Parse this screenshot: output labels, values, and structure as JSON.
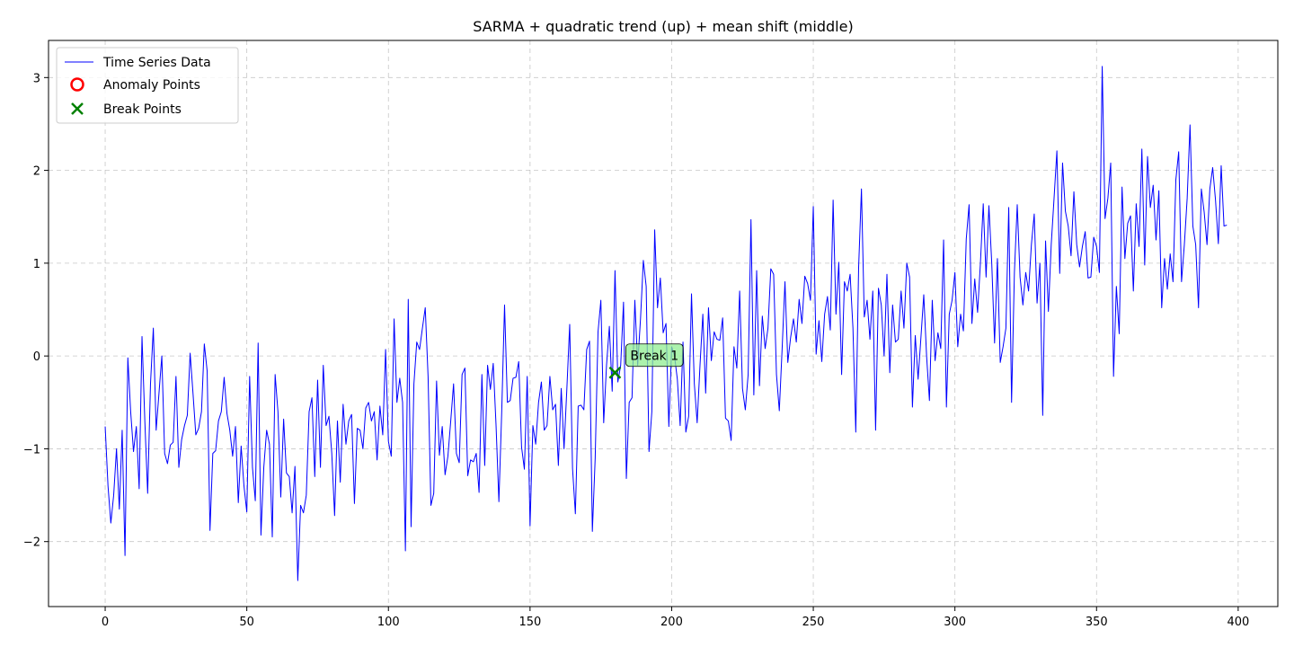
{
  "chart_data": {
    "type": "line",
    "title": "SARMA + quadratic trend (up) + mean shift (middle)",
    "xlabel": "",
    "ylabel": "",
    "xlim": [
      -20,
      414
    ],
    "ylim": [
      -2.7,
      3.4
    ],
    "xticks": [
      0,
      50,
      100,
      150,
      200,
      250,
      300,
      350,
      400
    ],
    "yticks": [
      -2,
      -1,
      0,
      1,
      2,
      3
    ],
    "grid": true,
    "legend_position": "top-left",
    "series": [
      {
        "name": "Time Series Data",
        "color": "#0000ff",
        "x_start": 0,
        "x_step": 1,
        "values": [
          -0.76,
          -1.4,
          -1.8,
          -1.5,
          -1.0,
          -1.65,
          -0.8,
          -2.15,
          -0.02,
          -0.6,
          -1.03,
          -0.76,
          -1.43,
          0.21,
          -0.7,
          -1.48,
          -0.3,
          0.3,
          -0.8,
          -0.4,
          0.0,
          -1.05,
          -1.16,
          -0.96,
          -0.93,
          -0.22,
          -1.2,
          -0.9,
          -0.75,
          -0.64,
          0.03,
          -0.4,
          -0.85,
          -0.78,
          -0.6,
          0.13,
          -0.16,
          -1.88,
          -1.05,
          -1.02,
          -0.7,
          -0.6,
          -0.23,
          -0.62,
          -0.8,
          -1.08,
          -0.76,
          -1.58,
          -0.97,
          -1.4,
          -1.68,
          -0.22,
          -1.2,
          -1.56,
          0.14,
          -1.93,
          -1.2,
          -0.8,
          -0.95,
          -1.95,
          -0.2,
          -0.6,
          -1.52,
          -0.68,
          -1.26,
          -1.3,
          -1.69,
          -1.19,
          -2.42,
          -1.61,
          -1.69,
          -1.5,
          -0.6,
          -0.45,
          -1.3,
          -0.26,
          -1.2,
          -0.1,
          -0.75,
          -0.65,
          -1.05,
          -1.72,
          -0.7,
          -1.36,
          -0.52,
          -0.95,
          -0.7,
          -0.63,
          -1.59,
          -0.78,
          -0.8,
          -1.0,
          -0.56,
          -0.5,
          -0.7,
          -0.6,
          -1.12,
          -0.54,
          -0.85,
          0.07,
          -0.92,
          -1.08,
          0.4,
          -0.5,
          -0.24,
          -0.5,
          -2.1,
          0.61,
          -1.84,
          -0.3,
          0.15,
          0.07,
          0.3,
          0.52,
          -0.22,
          -1.61,
          -1.48,
          -0.27,
          -1.07,
          -0.76,
          -1.28,
          -1.08,
          -0.7,
          -0.3,
          -1.05,
          -1.15,
          -0.2,
          -0.13,
          -1.29,
          -1.12,
          -1.14,
          -1.05,
          -1.47,
          -0.2,
          -1.18,
          -0.1,
          -0.36,
          -0.08,
          -0.75,
          -1.57,
          -0.6,
          0.55,
          -0.5,
          -0.48,
          -0.24,
          -0.23,
          -0.06,
          -0.98,
          -1.22,
          -0.22,
          -1.83,
          -0.75,
          -0.95,
          -0.5,
          -0.28,
          -0.8,
          -0.75,
          -0.22,
          -0.58,
          -0.52,
          -1.18,
          -0.35,
          -1.0,
          -0.35,
          0.34,
          -1.21,
          -1.7,
          -0.54,
          -0.53,
          -0.58,
          0.07,
          0.16,
          -1.89,
          -1.1,
          0.26,
          0.6,
          -0.72,
          -0.1,
          0.32,
          -0.38,
          0.92,
          -0.28,
          -0.1,
          0.58,
          -1.32,
          -0.5,
          -0.45,
          0.6,
          -0.1,
          0.4,
          1.03,
          0.75,
          -1.03,
          -0.6,
          1.36,
          0.52,
          0.84,
          0.25,
          0.35,
          -0.76,
          0.1,
          0.0,
          -0.25,
          -0.75,
          0.15,
          -0.82,
          -0.65,
          0.67,
          -0.3,
          -0.72,
          -0.1,
          0.45,
          -0.4,
          0.52,
          -0.05,
          0.26,
          0.18,
          0.17,
          0.41,
          -0.67,
          -0.7,
          -0.91,
          0.1,
          -0.13,
          0.7,
          -0.35,
          -0.58,
          -0.2,
          1.47,
          -0.42,
          0.92,
          -0.32,
          0.43,
          0.08,
          0.3,
          0.94,
          0.88,
          -0.2,
          -0.59,
          0.08,
          0.8,
          -0.07,
          0.2,
          0.4,
          0.15,
          0.61,
          0.35,
          0.86,
          0.78,
          0.6,
          1.61,
          0.02,
          0.38,
          -0.06,
          0.45,
          0.64,
          0.28,
          1.68,
          0.45,
          1.01,
          -0.2,
          0.8,
          0.7,
          0.88,
          0.3,
          -0.82,
          0.95,
          1.8,
          0.42,
          0.6,
          0.18,
          0.7,
          -0.8,
          0.73,
          0.55,
          0.0,
          0.88,
          -0.18,
          0.55,
          0.15,
          0.18,
          0.7,
          0.3,
          1.0,
          0.85,
          -0.55,
          0.22,
          -0.25,
          0.2,
          0.66,
          0.0,
          -0.48,
          0.6,
          -0.05,
          0.25,
          0.08,
          1.25,
          -0.55,
          0.45,
          0.6,
          0.9,
          0.1,
          0.45,
          0.27,
          1.26,
          1.63,
          0.35,
          0.83,
          0.47,
          1.0,
          1.64,
          0.85,
          1.62,
          1.0,
          0.14,
          1.05,
          -0.07,
          0.1,
          0.3,
          1.6,
          -0.5,
          0.9,
          1.63,
          0.85,
          0.55,
          0.9,
          0.7,
          1.2,
          1.53,
          0.57,
          1.0,
          -0.64,
          1.24,
          0.48,
          1.2,
          1.7,
          2.21,
          0.89,
          2.08,
          1.56,
          1.4,
          1.08,
          1.77,
          1.2,
          0.96,
          1.18,
          1.34,
          0.84,
          0.85,
          1.28,
          1.18,
          0.9,
          3.12,
          1.48,
          1.7,
          2.08,
          -0.22,
          0.75,
          0.24,
          1.82,
          1.05,
          1.43,
          1.51,
          0.7,
          1.64,
          1.18,
          2.23,
          0.98,
          2.15,
          1.6,
          1.84,
          1.25,
          1.78,
          0.52,
          1.05,
          0.72,
          1.1,
          0.8,
          1.9,
          2.2,
          0.8,
          1.2,
          1.7,
          2.49,
          1.4,
          1.2,
          0.52,
          1.8,
          1.55,
          1.2,
          1.8,
          2.03,
          1.68,
          1.21,
          2.05,
          1.4,
          1.41
        ]
      },
      {
        "name": "Anomaly Points",
        "color": "#ff0000",
        "marker": "circle",
        "points": []
      },
      {
        "name": "Break Points",
        "color": "#008000",
        "marker": "x",
        "points": [
          {
            "x": 180,
            "y": -0.18
          }
        ]
      }
    ],
    "annotations": [
      {
        "text": "Break 1",
        "x": 180,
        "y": -0.18,
        "background": "#90ee90"
      }
    ]
  }
}
